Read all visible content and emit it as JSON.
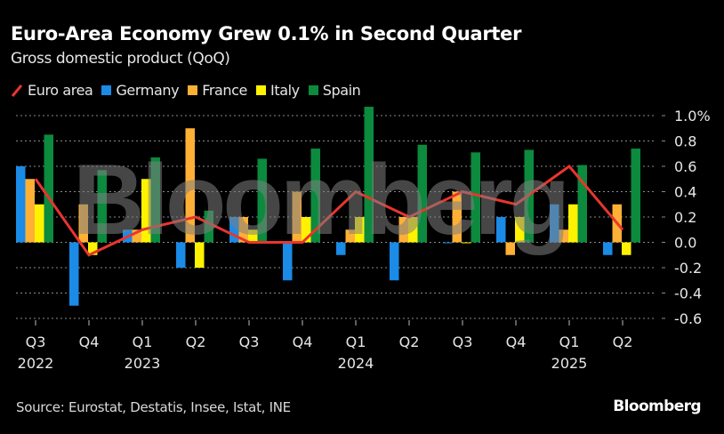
{
  "header": {
    "title": "Euro-Area Economy Grew 0.1% in Second Quarter",
    "subtitle": "Gross domestic product (QoQ)"
  },
  "footer": {
    "source": "Source: Eurostat, Destatis, Insee, Istat, INE",
    "brand": "Bloomberg"
  },
  "watermark": "Bloomberg",
  "chart_data": {
    "type": "bar",
    "title": "Euro-Area Economy Grew 0.1% in Second Quarter",
    "subtitle": "Gross domestic product (QoQ)",
    "xlabel": "",
    "ylabel": "",
    "categories": [
      "Q3 2022",
      "Q4 2022",
      "Q1 2023",
      "Q2 2023",
      "Q3 2023",
      "Q4 2023",
      "Q1 2024",
      "Q2 2024",
      "Q3 2024",
      "Q4 2024",
      "Q1 2025",
      "Q2 2025"
    ],
    "x_tick_labels": [
      {
        "q": "Q3",
        "year": "2022"
      },
      {
        "q": "Q4",
        "year": ""
      },
      {
        "q": "Q1",
        "year": "2023"
      },
      {
        "q": "Q2",
        "year": ""
      },
      {
        "q": "Q3",
        "year": ""
      },
      {
        "q": "Q4",
        "year": ""
      },
      {
        "q": "Q1",
        "year": "2024"
      },
      {
        "q": "Q2",
        "year": ""
      },
      {
        "q": "Q3",
        "year": ""
      },
      {
        "q": "Q4",
        "year": ""
      },
      {
        "q": "Q1",
        "year": "2025"
      },
      {
        "q": "Q2",
        "year": ""
      }
    ],
    "ylim": [
      -0.6,
      1.0
    ],
    "y_ticks": [
      1.0,
      0.8,
      0.6,
      0.4,
      0.2,
      0.0,
      -0.2,
      -0.4,
      -0.6
    ],
    "y_tick_labels": [
      "1.0%",
      "0.8",
      "0.6",
      "0.4",
      "0.2",
      "0.0",
      "-0.2",
      "-0.4",
      "-0.6"
    ],
    "grid": true,
    "legend_position": "top-left",
    "series": [
      {
        "name": "Germany",
        "kind": "bar",
        "color": "#1a8be6",
        "values": [
          0.6,
          -0.5,
          0.1,
          -0.2,
          0.2,
          -0.3,
          -0.1,
          -0.3,
          0.0,
          0.2,
          0.3,
          -0.1
        ]
      },
      {
        "name": "France",
        "kind": "bar",
        "color": "#fdb035",
        "values": [
          0.5,
          0.3,
          0.1,
          0.9,
          0.2,
          0.4,
          0.1,
          0.2,
          0.4,
          -0.1,
          0.1,
          0.3
        ]
      },
      {
        "name": "Italy",
        "kind": "bar",
        "color": "#fff200",
        "values": [
          0.3,
          -0.1,
          0.5,
          -0.2,
          0.1,
          0.2,
          0.2,
          0.2,
          0.0,
          0.2,
          0.3,
          -0.1
        ]
      },
      {
        "name": "Spain",
        "kind": "bar",
        "color": "#0c8a3e",
        "values": [
          0.85,
          0.57,
          0.67,
          0.25,
          0.66,
          0.74,
          1.07,
          0.77,
          0.71,
          0.73,
          0.61,
          0.74
        ]
      },
      {
        "name": "Euro area",
        "kind": "line",
        "color": "#e8352e",
        "values": [
          0.5,
          -0.1,
          0.1,
          0.2,
          0.0,
          0.0,
          0.4,
          0.2,
          0.4,
          0.3,
          0.6,
          0.1
        ]
      }
    ]
  },
  "legend": [
    {
      "name": "Euro area",
      "type": "line",
      "color": "#e8352e"
    },
    {
      "name": "Germany",
      "type": "box",
      "color": "#1a8be6"
    },
    {
      "name": "France",
      "type": "box",
      "color": "#fdb035"
    },
    {
      "name": "Italy",
      "type": "box",
      "color": "#fff200"
    },
    {
      "name": "Spain",
      "type": "box",
      "color": "#0c8a3e"
    }
  ]
}
